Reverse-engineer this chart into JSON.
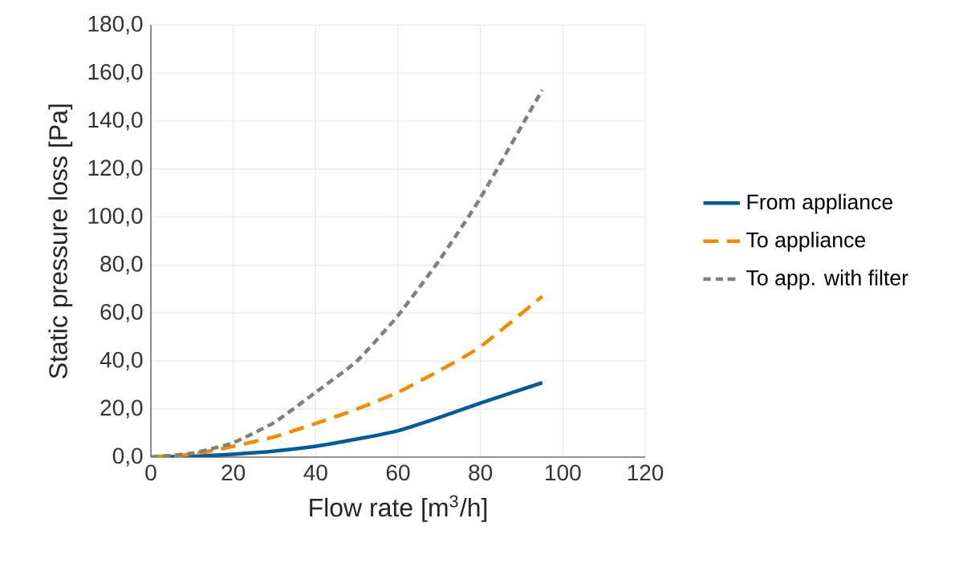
{
  "chart_data": {
    "type": "line",
    "xlabel": "Flow rate [m$^{3}$/h]",
    "ylabel": "Static pressure loss [Pa]",
    "x": [
      0,
      10,
      20,
      30,
      40,
      50,
      60,
      70,
      80,
      95
    ],
    "series": [
      {
        "name": "From appliance",
        "color": "#005b96",
        "line_style": "solid",
        "values": [
          0,
          0.3,
          1.2,
          2.5,
          4.5,
          7.5,
          11,
          16.5,
          22.5,
          31
        ]
      },
      {
        "name": "To appliance",
        "color": "#f08c00",
        "line_style": "dashed",
        "values": [
          0,
          1.2,
          4.5,
          8.5,
          14,
          20,
          27,
          36,
          46,
          67
        ]
      },
      {
        "name": "To app. with filter",
        "color": "#808080",
        "line_style": "dotted",
        "values": [
          0,
          1.6,
          6,
          14.5,
          27,
          40,
          59,
          82,
          108,
          153
        ]
      }
    ],
    "xlim": [
      0,
      120
    ],
    "xticks": [
      0,
      20,
      40,
      60,
      80,
      100,
      120
    ],
    "ylim": [
      0,
      180
    ],
    "yticks": [
      {
        "value": 0,
        "label": "0,0"
      },
      {
        "value": 20,
        "label": "20,0"
      },
      {
        "value": 40,
        "label": "40,0"
      },
      {
        "value": 60,
        "label": "60,0"
      },
      {
        "value": 80,
        "label": "80,0"
      },
      {
        "value": 100,
        "label": "100,0"
      },
      {
        "value": 120,
        "label": "120,0"
      },
      {
        "value": 140,
        "label": "140,0"
      },
      {
        "value": 160,
        "label": "160,0"
      },
      {
        "value": 180,
        "label": "180,0"
      }
    ],
    "grid": true,
    "legend": "right",
    "marker": "none"
  }
}
